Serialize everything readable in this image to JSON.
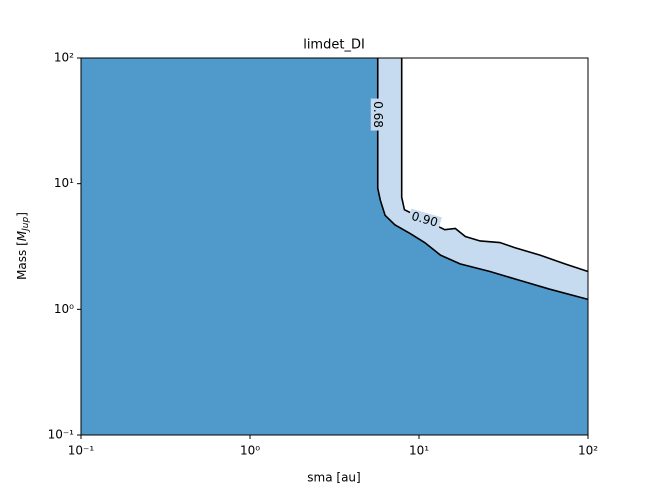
{
  "chart_data": {
    "type": "contour",
    "title": "limdet_DI",
    "xlabel": "sma [au]",
    "ylabel": {
      "prefix": "Mass [",
      "symbol": "M",
      "subscript": "Jup",
      "suffix": "]"
    },
    "xscale": "log",
    "yscale": "log",
    "xlim": [
      0.1,
      100
    ],
    "ylim": [
      0.1,
      100
    ],
    "xticks": [
      {
        "value": 0.1,
        "label": "10⁻¹"
      },
      {
        "value": 1,
        "label": "10⁰"
      },
      {
        "value": 10,
        "label": "10¹"
      },
      {
        "value": 100,
        "label": "10²"
      }
    ],
    "yticks": [
      {
        "value": 0.1,
        "label": "10⁻¹"
      },
      {
        "value": 1,
        "label": "10⁰"
      },
      {
        "value": 10,
        "label": "10¹"
      },
      {
        "value": 100,
        "label": "10²"
      }
    ],
    "fill_colors": [
      "#4f9acb",
      "#c6dbef"
    ],
    "line_color": "#000000",
    "series": [
      {
        "level": 0.68,
        "x": [
          5.7,
          5.7,
          5.9,
          6.3,
          7.2,
          8.9,
          10.8,
          13.4,
          17.5,
          26.3,
          39.5,
          59,
          100
        ],
        "y": [
          100,
          9.2,
          7.4,
          5.6,
          4.7,
          4.0,
          3.4,
          2.7,
          2.3,
          2.0,
          1.7,
          1.45,
          1.2
        ]
      },
      {
        "level": {
          "value": 0.9,
          "label": "0.90"
        },
        "x": [
          7.9,
          7.9,
          8.2,
          14.2,
          16.4,
          18.8,
          23.0,
          30.1,
          36.8,
          52,
          73,
          100
        ],
        "y": [
          100,
          7.8,
          6.2,
          4.3,
          4.4,
          3.8,
          3.5,
          3.4,
          3.1,
          2.7,
          2.3,
          2.0
        ]
      }
    ]
  }
}
